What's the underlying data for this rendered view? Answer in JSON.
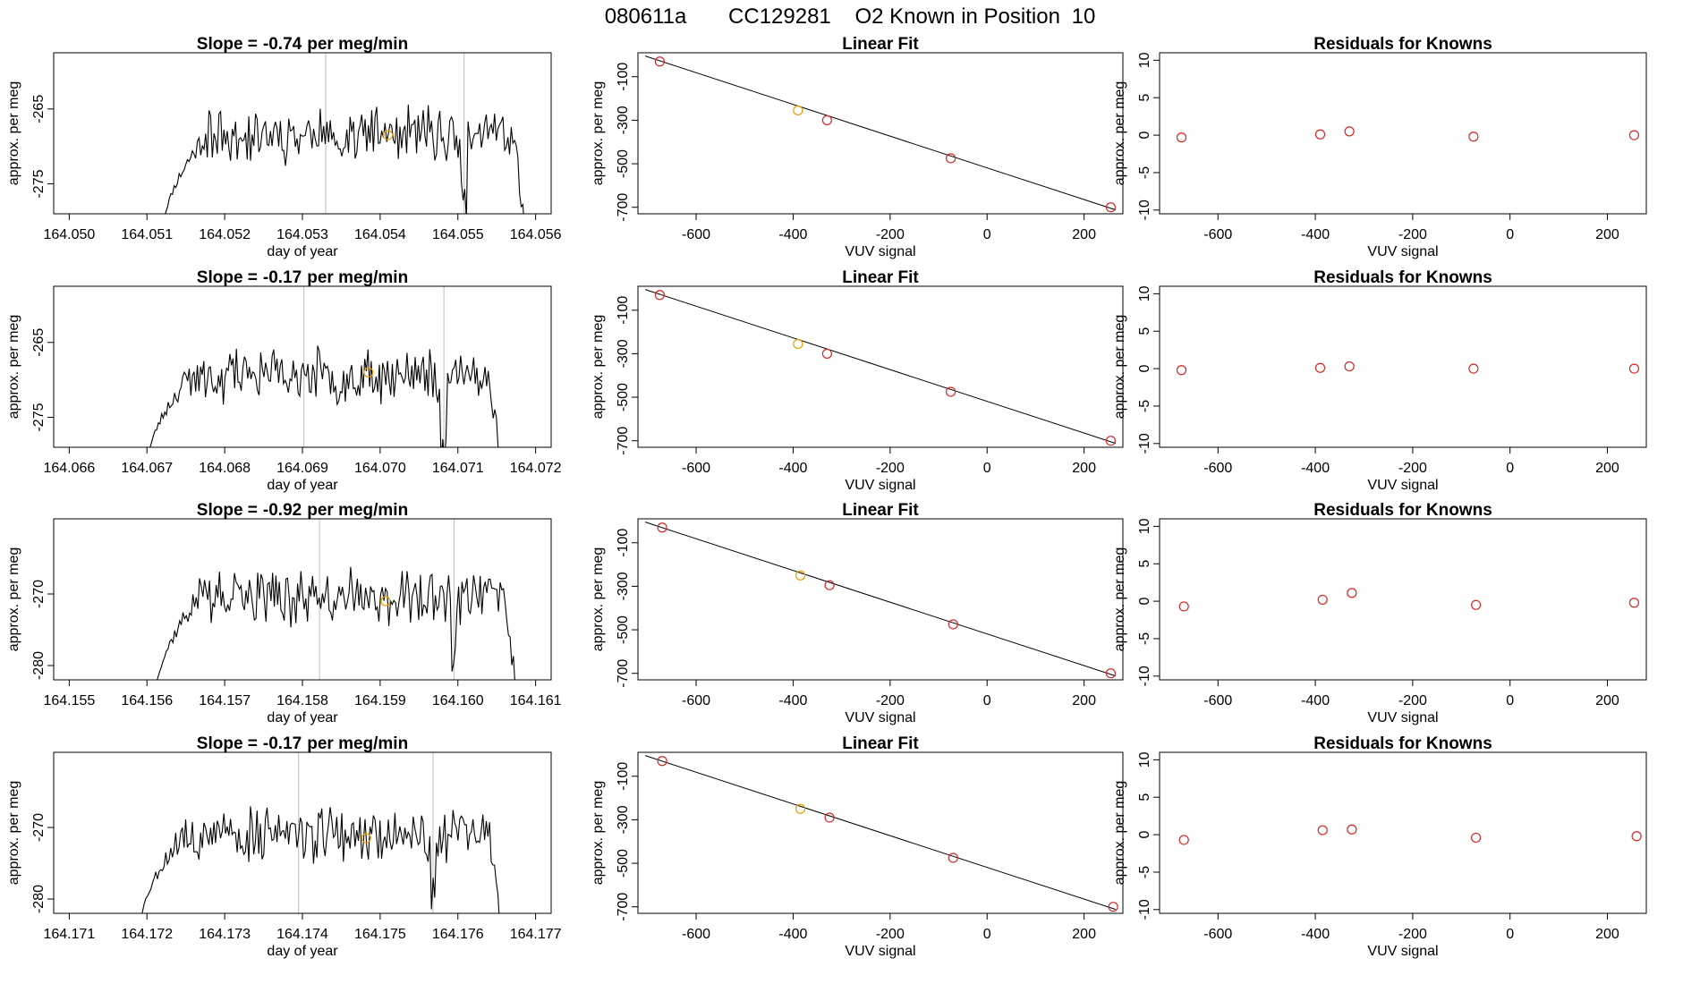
{
  "header": {
    "run_id": "080611a",
    "tank_id": "CC129281",
    "known_label": "O2 Known in Position",
    "position": "10"
  },
  "colors": {
    "line": "#000000",
    "points": "#d62728",
    "highlight": "#e69f00",
    "marker": "#bebebe"
  },
  "chart_data": [
    {
      "row": 1,
      "time_series": {
        "type": "line",
        "title_prefix": "Slope =",
        "slope": "-0.74",
        "title_suffix": "per meg/min",
        "xlabel": "day of year",
        "ylabel": "approx. per meg",
        "xlim": [
          164.0498,
          164.0562
        ],
        "ylim": [
          -279,
          -257.5
        ],
        "xticks": [
          "164.050",
          "164.051",
          "164.052",
          "164.053",
          "164.054",
          "164.055",
          "164.056"
        ],
        "yticks": [
          "-265",
          "-275"
        ],
        "start": 164.0512,
        "end": 164.0559,
        "vlines": [
          164.0533,
          164.05508
        ],
        "highlight": {
          "x": 164.0541,
          "y": -268.5
        },
        "baseline": -268.5,
        "amplitude": 2.6,
        "seed": 11
      },
      "linear_fit": {
        "type": "scatter",
        "title": "Linear Fit",
        "xlabel": "VUV signal",
        "ylabel": "approx. per meg",
        "xlim": [
          -720,
          280
        ],
        "ylim": [
          -730,
          10
        ],
        "xticks": [
          "-600",
          "-400",
          "-200",
          "0",
          "200"
        ],
        "yticks": [
          "-100",
          "-300",
          "-500",
          "-700"
        ],
        "points": [
          [
            -675,
            -30
          ],
          [
            -390,
            -255
          ],
          [
            -330,
            -300
          ],
          [
            -75,
            -475
          ],
          [
            255,
            -700
          ]
        ],
        "highlight_index": 1,
        "fit_line": [
          [
            -705,
            -5
          ],
          [
            265,
            -712
          ]
        ]
      },
      "residuals": {
        "type": "scatter",
        "title": "Residuals for Knowns",
        "xlabel": "VUV signal",
        "ylabel": "approx. per meg",
        "xlim": [
          -720,
          280
        ],
        "ylim": [
          -10.5,
          11
        ],
        "xticks": [
          "-600",
          "-400",
          "-200",
          "0",
          "200"
        ],
        "yticks": [
          "10",
          "5",
          "0",
          "-5",
          "-10"
        ],
        "points": [
          [
            -675,
            -0.3
          ],
          [
            -390,
            0.1
          ],
          [
            -330,
            0.5
          ],
          [
            -75,
            -0.2
          ],
          [
            255,
            0.0
          ]
        ]
      }
    },
    {
      "row": 2,
      "time_series": {
        "type": "line",
        "title_prefix": "Slope =",
        "slope": "-0.17",
        "title_suffix": "per meg/min",
        "xlabel": "day of year",
        "ylabel": "approx. per meg",
        "xlim": [
          164.0658,
          164.0722
        ],
        "ylim": [
          -279,
          -257.5
        ],
        "xticks": [
          "164.066",
          "164.067",
          "164.068",
          "164.069",
          "164.070",
          "164.071",
          "164.072"
        ],
        "yticks": [
          "-265",
          "-275"
        ],
        "start": 164.067,
        "end": 164.0716,
        "vlines": [
          164.06902,
          164.07082
        ],
        "highlight": {
          "x": 164.06985,
          "y": -269.0
        },
        "baseline": -269.5,
        "amplitude": 2.6,
        "seed": 23
      },
      "linear_fit": {
        "type": "scatter",
        "title": "Linear Fit",
        "xlabel": "VUV signal",
        "ylabel": "approx. per meg",
        "xlim": [
          -720,
          280
        ],
        "ylim": [
          -730,
          10
        ],
        "xticks": [
          "-600",
          "-400",
          "-200",
          "0",
          "200"
        ],
        "yticks": [
          "-100",
          "-300",
          "-500",
          "-700"
        ],
        "points": [
          [
            -675,
            -30
          ],
          [
            -390,
            -255
          ],
          [
            -330,
            -300
          ],
          [
            -75,
            -475
          ],
          [
            255,
            -700
          ]
        ],
        "highlight_index": 1,
        "fit_line": [
          [
            -705,
            -5
          ],
          [
            265,
            -712
          ]
        ]
      },
      "residuals": {
        "type": "scatter",
        "title": "Residuals for Knowns",
        "xlabel": "VUV signal",
        "ylabel": "approx. per meg",
        "xlim": [
          -720,
          280
        ],
        "ylim": [
          -10.5,
          11
        ],
        "xticks": [
          "-600",
          "-400",
          "-200",
          "0",
          "200"
        ],
        "yticks": [
          "10",
          "5",
          "0",
          "-5",
          "-10"
        ],
        "points": [
          [
            -675,
            -0.2
          ],
          [
            -390,
            0.1
          ],
          [
            -330,
            0.3
          ],
          [
            -75,
            0.0
          ],
          [
            255,
            0.0
          ]
        ]
      }
    },
    {
      "row": 3,
      "time_series": {
        "type": "line",
        "title_prefix": "Slope =",
        "slope": "-0.92",
        "title_suffix": "per meg/min",
        "xlabel": "day of year",
        "ylabel": "approx. per meg",
        "xlim": [
          164.1548,
          164.1612
        ],
        "ylim": [
          -282,
          -259.5
        ],
        "xticks": [
          "164.155",
          "164.156",
          "164.157",
          "164.158",
          "164.159",
          "164.160",
          "164.161"
        ],
        "yticks": [
          "-270",
          "-280"
        ],
        "start": 164.1561,
        "end": 164.1608,
        "vlines": [
          164.15822,
          164.15995
        ],
        "highlight": {
          "x": 164.15907,
          "y": -271.0
        },
        "baseline": -270.5,
        "amplitude": 2.7,
        "seed": 37
      },
      "linear_fit": {
        "type": "scatter",
        "title": "Linear Fit",
        "xlabel": "VUV signal",
        "ylabel": "approx. per meg",
        "xlim": [
          -720,
          280
        ],
        "ylim": [
          -730,
          10
        ],
        "xticks": [
          "-600",
          "-400",
          "-200",
          "0",
          "200"
        ],
        "yticks": [
          "-100",
          "-300",
          "-500",
          "-700"
        ],
        "points": [
          [
            -670,
            -30
          ],
          [
            -385,
            -250
          ],
          [
            -325,
            -295
          ],
          [
            -70,
            -475
          ],
          [
            255,
            -700
          ]
        ],
        "highlight_index": 1,
        "fit_line": [
          [
            -705,
            -5
          ],
          [
            265,
            -712
          ]
        ]
      },
      "residuals": {
        "type": "scatter",
        "title": "Residuals for Knowns",
        "xlabel": "VUV signal",
        "ylabel": "approx. per meg",
        "xlim": [
          -720,
          280
        ],
        "ylim": [
          -10.5,
          11
        ],
        "xticks": [
          "-600",
          "-400",
          "-200",
          "0",
          "200"
        ],
        "yticks": [
          "10",
          "5",
          "0",
          "-5",
          "-10"
        ],
        "points": [
          [
            -670,
            -0.7
          ],
          [
            -385,
            0.2
          ],
          [
            -325,
            1.1
          ],
          [
            -70,
            -0.5
          ],
          [
            255,
            -0.2
          ]
        ]
      }
    },
    {
      "row": 4,
      "time_series": {
        "type": "line",
        "title_prefix": "Slope =",
        "slope": "-0.17",
        "title_suffix": "per meg/min",
        "xlabel": "day of year",
        "ylabel": "approx. per meg",
        "xlim": [
          164.1708,
          164.1772
        ],
        "ylim": [
          -282,
          -259.5
        ],
        "xticks": [
          "164.171",
          "164.172",
          "164.173",
          "164.174",
          "164.175",
          "164.176",
          "164.177"
        ],
        "yticks": [
          "-270",
          "-280"
        ],
        "start": 164.1719,
        "end": 164.1766,
        "vlines": [
          164.17395,
          164.17568
        ],
        "highlight": {
          "x": 164.17482,
          "y": -271.5
        },
        "baseline": -271.0,
        "amplitude": 2.8,
        "seed": 53
      },
      "linear_fit": {
        "type": "scatter",
        "title": "Linear Fit",
        "xlabel": "VUV signal",
        "ylabel": "approx. per meg",
        "xlim": [
          -720,
          280
        ],
        "ylim": [
          -730,
          10
        ],
        "xticks": [
          "-600",
          "-400",
          "-200",
          "0",
          "200"
        ],
        "yticks": [
          "-100",
          "-300",
          "-500",
          "-700"
        ],
        "points": [
          [
            -670,
            -30
          ],
          [
            -385,
            -250
          ],
          [
            -325,
            -290
          ],
          [
            -70,
            -475
          ],
          [
            260,
            -700
          ]
        ],
        "highlight_index": 1,
        "fit_line": [
          [
            -705,
            -5
          ],
          [
            265,
            -712
          ]
        ]
      },
      "residuals": {
        "type": "scatter",
        "title": "Residuals for Knowns",
        "xlabel": "VUV signal",
        "ylabel": "approx. per meg",
        "xlim": [
          -720,
          280
        ],
        "ylim": [
          -10.5,
          11
        ],
        "xticks": [
          "-600",
          "-400",
          "-200",
          "0",
          "200"
        ],
        "yticks": [
          "10",
          "5",
          "0",
          "-5",
          "-10"
        ],
        "points": [
          [
            -670,
            -0.7
          ],
          [
            -385,
            0.6
          ],
          [
            -325,
            0.7
          ],
          [
            -70,
            -0.4
          ],
          [
            260,
            -0.2
          ]
        ]
      }
    }
  ]
}
